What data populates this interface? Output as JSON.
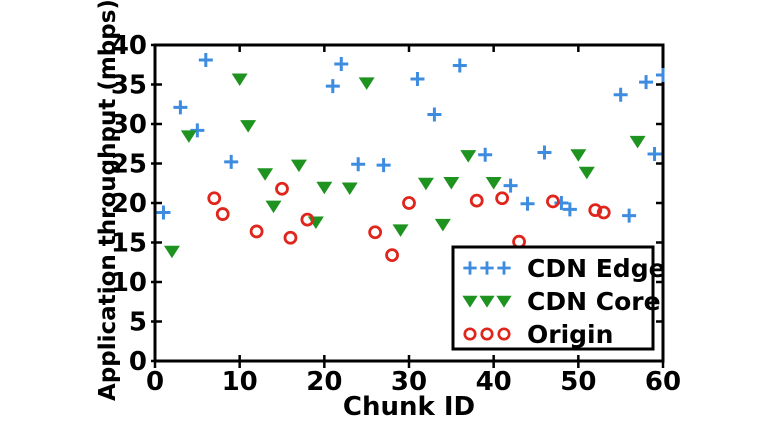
{
  "chart_data": {
    "type": "scatter",
    "title": "",
    "xlabel": "Chunk ID",
    "ylabel": "Application throughput (mbps)",
    "xlim": [
      0,
      60
    ],
    "ylim": [
      0,
      40
    ],
    "x_ticks": [
      0,
      10,
      20,
      30,
      40,
      50,
      60
    ],
    "y_ticks": [
      0,
      5,
      10,
      15,
      20,
      25,
      30,
      35,
      40
    ],
    "grid": false,
    "legend_position": "lower right",
    "series": [
      {
        "name": "CDN Edge",
        "marker": "plus",
        "color": "#3d8ce0",
        "points": [
          [
            1,
            18.8
          ],
          [
            3,
            32.1
          ],
          [
            5,
            29.2
          ],
          [
            6,
            38.1
          ],
          [
            9,
            25.2
          ],
          [
            21,
            34.8
          ],
          [
            22,
            37.6
          ],
          [
            24,
            24.9
          ],
          [
            27,
            24.8
          ],
          [
            31,
            35.7
          ],
          [
            33,
            31.2
          ],
          [
            36,
            37.4
          ],
          [
            39,
            26.1
          ],
          [
            42,
            22.2
          ],
          [
            44,
            19.9
          ],
          [
            46,
            26.4
          ],
          [
            48,
            20.0
          ],
          [
            49,
            19.2
          ],
          [
            55,
            33.7
          ],
          [
            56,
            18.4
          ],
          [
            58,
            35.3
          ],
          [
            59,
            26.2
          ],
          [
            60,
            36.2
          ]
        ]
      },
      {
        "name": "CDN Core",
        "marker": "triangle-down",
        "color": "#1e9320",
        "points": [
          [
            2,
            13.9
          ],
          [
            4,
            28.5
          ],
          [
            10,
            35.7
          ],
          [
            11,
            29.8
          ],
          [
            13,
            23.7
          ],
          [
            14,
            19.6
          ],
          [
            17,
            24.8
          ],
          [
            19,
            17.6
          ],
          [
            20,
            22.0
          ],
          [
            23,
            21.9
          ],
          [
            25,
            35.2
          ],
          [
            29,
            16.6
          ],
          [
            32,
            22.5
          ],
          [
            34,
            17.3
          ],
          [
            35,
            22.6
          ],
          [
            37,
            26.0
          ],
          [
            40,
            22.6
          ],
          [
            50,
            26.1
          ],
          [
            51,
            23.9
          ],
          [
            57,
            27.8
          ]
        ]
      },
      {
        "name": "Origin",
        "marker": "circle-open",
        "color": "#e0251c",
        "points": [
          [
            7,
            20.6
          ],
          [
            8,
            18.6
          ],
          [
            12,
            16.4
          ],
          [
            15,
            21.8
          ],
          [
            16,
            15.6
          ],
          [
            18,
            17.9
          ],
          [
            26,
            16.3
          ],
          [
            28,
            13.4
          ],
          [
            30,
            20.0
          ],
          [
            38,
            20.3
          ],
          [
            41,
            20.6
          ],
          [
            43,
            15.1
          ],
          [
            47,
            20.2
          ],
          [
            52,
            19.1
          ],
          [
            53,
            18.8
          ]
        ]
      }
    ],
    "axis_color": "#000000",
    "background_color": "#ffffff"
  }
}
